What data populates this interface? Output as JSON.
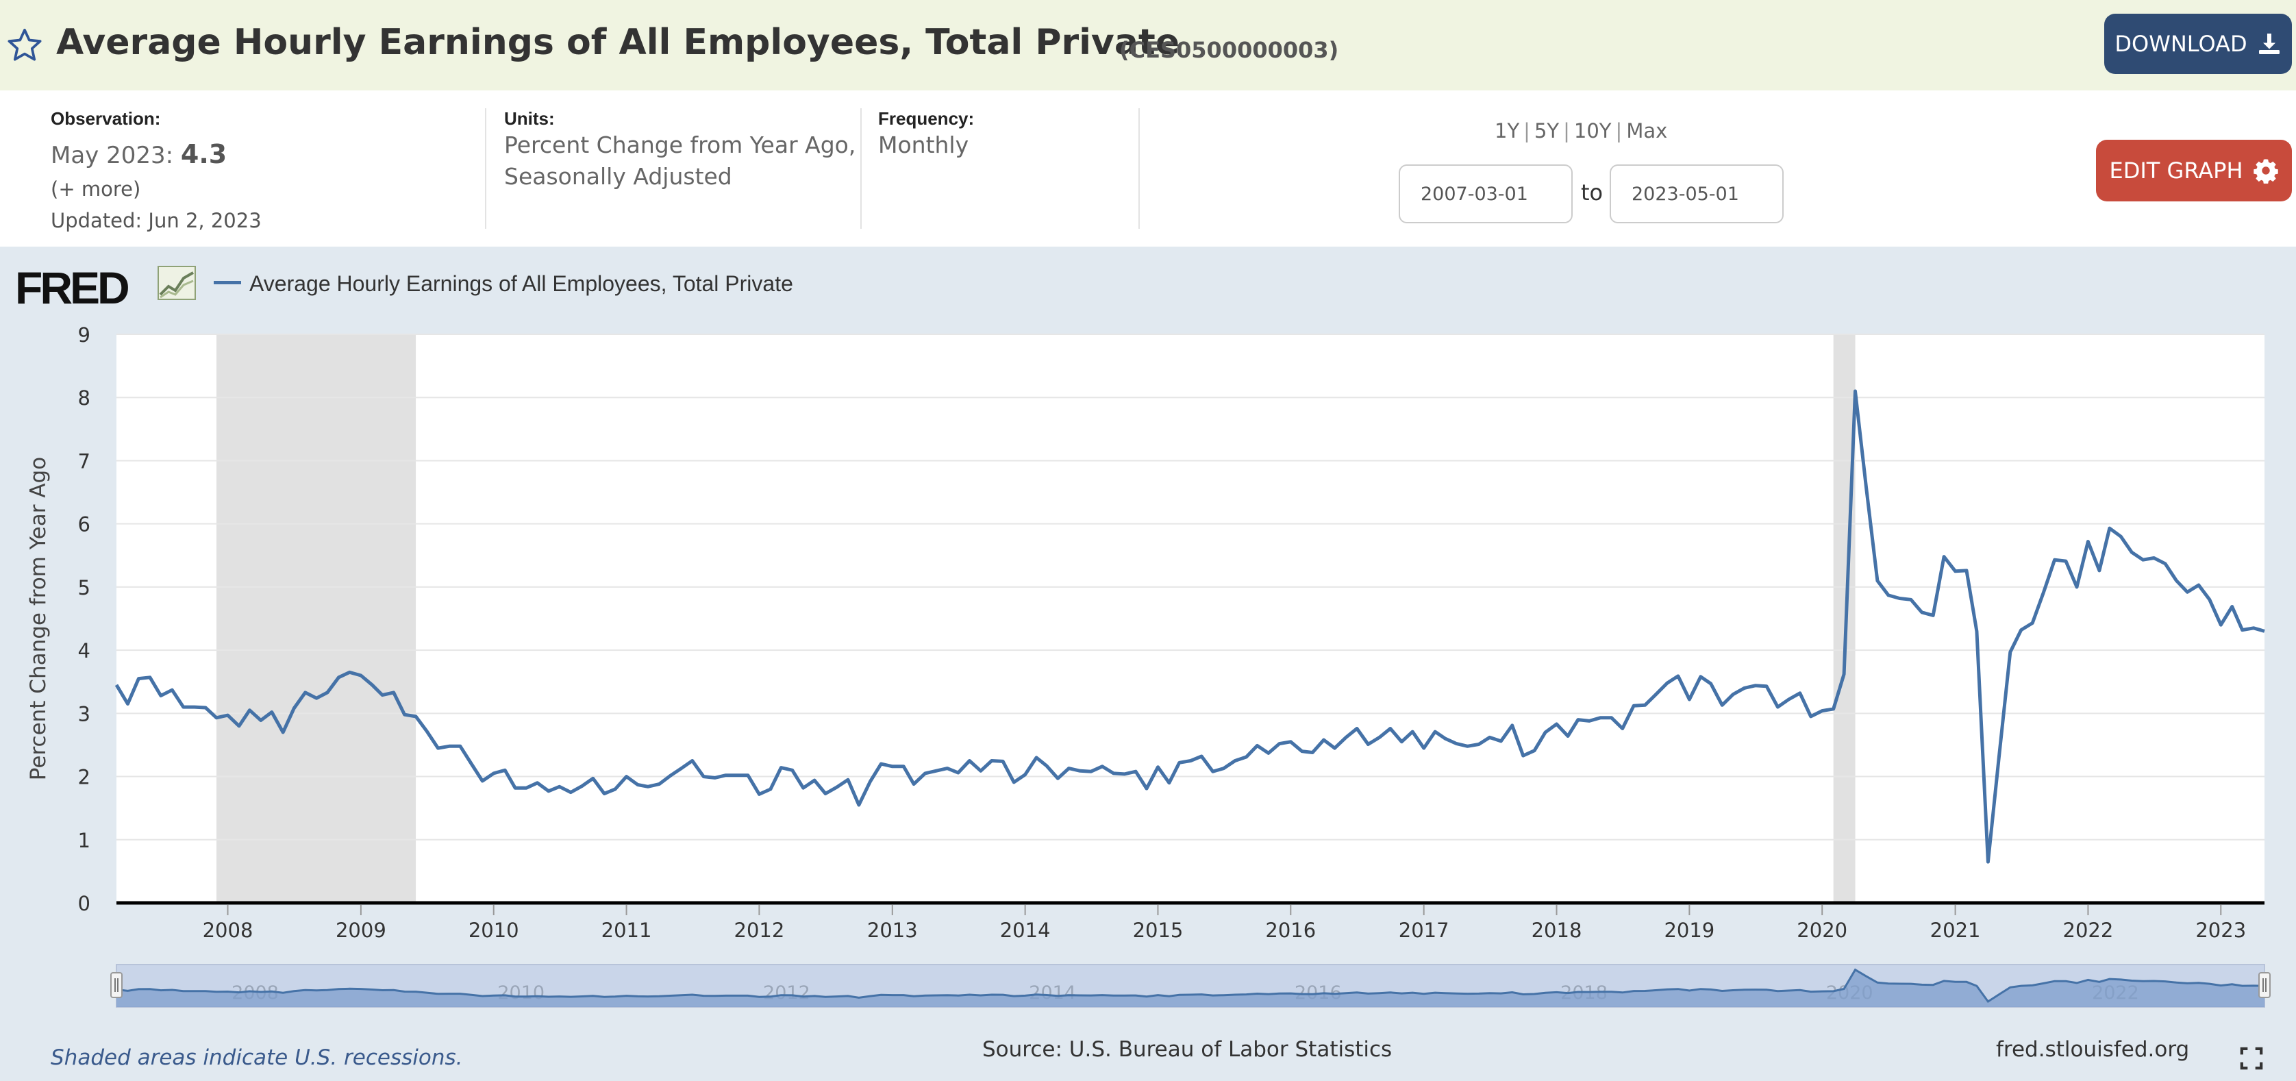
{
  "header": {
    "title": "Average Hourly Earnings of All Employees, Total Private",
    "series_id": "(CES0500000003)",
    "download_label": "DOWNLOAD",
    "bg_color": "#f0f4e1",
    "download_color": "#2f4b73"
  },
  "meta": {
    "observation_label": "Observation:",
    "observation_date": "May 2023:",
    "observation_value": "4.3",
    "more_label": "(+ more)",
    "updated": "Updated: Jun 2, 2023",
    "units_label": "Units:",
    "units_line1": "Percent Change from Year Ago,",
    "units_line2": "Seasonally Adjusted",
    "frequency_label": "Frequency:",
    "frequency_value": "Monthly",
    "ranges": [
      "1Y",
      "5Y",
      "10Y",
      "Max"
    ],
    "start_date": "2007-03-01",
    "to_label": "to",
    "end_date": "2023-05-01",
    "edit_label": "EDIT GRAPH",
    "edit_color": "#c84b3c"
  },
  "chart": {
    "logo_text": "FRED",
    "legend_label": "Average Hourly Earnings of All Employees, Total Private",
    "footer_note": "Shaded areas indicate U.S. recessions.",
    "source": "Source: U.S. Bureau of Labor Statistics",
    "site": "fred.stlouisfed.org"
  },
  "chart_data": {
    "type": "line",
    "title": "",
    "xlabel": "",
    "ylabel": "Percent Change from Year Ago",
    "ylim": [
      0,
      9
    ],
    "yticks": [
      0,
      1,
      2,
      3,
      4,
      5,
      6,
      7,
      8,
      9
    ],
    "xlim": [
      "2007-03-01",
      "2023-05-01"
    ],
    "xticks": [
      "2008",
      "2009",
      "2010",
      "2011",
      "2012",
      "2013",
      "2014",
      "2015",
      "2016",
      "2017",
      "2018",
      "2019",
      "2020",
      "2021",
      "2022",
      "2023"
    ],
    "navigator_labels": [
      "2008",
      "2010",
      "2012",
      "2014",
      "2016",
      "2018",
      "2020",
      "2022"
    ],
    "grid": true,
    "recessions": [
      [
        "2007-12-01",
        "2009-06-01"
      ],
      [
        "2020-02-01",
        "2020-04-01"
      ]
    ],
    "line_color": "#4572a7",
    "recession_color": "#e1e1e1",
    "series": [
      {
        "name": "Average Hourly Earnings of All Employees, Total Private",
        "start": "2007-03",
        "frequency": "monthly",
        "values": [
          3.45,
          3.15,
          3.55,
          3.57,
          3.28,
          3.37,
          3.1,
          3.1,
          3.09,
          2.93,
          2.97,
          2.8,
          3.05,
          2.89,
          3.02,
          2.7,
          3.08,
          3.33,
          3.24,
          3.33,
          3.57,
          3.65,
          3.6,
          3.45,
          3.29,
          3.33,
          2.98,
          2.95,
          2.72,
          2.45,
          2.48,
          2.48,
          2.2,
          1.93,
          2.05,
          2.1,
          1.82,
          1.82,
          1.9,
          1.77,
          1.84,
          1.75,
          1.85,
          1.97,
          1.73,
          1.8,
          2.0,
          1.87,
          1.84,
          1.88,
          2.01,
          2.13,
          2.25,
          2.0,
          1.98,
          2.02,
          2.02,
          2.02,
          1.72,
          1.8,
          2.14,
          2.1,
          1.82,
          1.94,
          1.73,
          1.83,
          1.95,
          1.55,
          1.92,
          2.2,
          2.16,
          2.16,
          1.88,
          2.05,
          2.09,
          2.13,
          2.06,
          2.25,
          2.09,
          2.25,
          2.24,
          1.91,
          2.03,
          2.3,
          2.17,
          1.97,
          2.13,
          2.09,
          2.08,
          2.16,
          2.05,
          2.04,
          2.08,
          1.81,
          2.15,
          1.9,
          2.22,
          2.25,
          2.32,
          2.08,
          2.13,
          2.25,
          2.31,
          2.49,
          2.37,
          2.52,
          2.55,
          2.4,
          2.38,
          2.58,
          2.45,
          2.62,
          2.76,
          2.51,
          2.62,
          2.76,
          2.55,
          2.71,
          2.45,
          2.71,
          2.6,
          2.52,
          2.48,
          2.51,
          2.62,
          2.56,
          2.81,
          2.33,
          2.41,
          2.7,
          2.83,
          2.64,
          2.9,
          2.88,
          2.93,
          2.93,
          2.76,
          3.12,
          3.13,
          3.3,
          3.48,
          3.59,
          3.22,
          3.58,
          3.47,
          3.13,
          3.3,
          3.4,
          3.44,
          3.43,
          3.1,
          3.22,
          3.32,
          2.95,
          3.04,
          3.07,
          3.62,
          8.1,
          6.58,
          5.1,
          4.87,
          4.82,
          4.8,
          4.6,
          4.55,
          5.48,
          5.25,
          5.26,
          4.3,
          0.65,
          2.3,
          3.97,
          4.32,
          4.43,
          4.92,
          5.43,
          5.41,
          5.0,
          5.72,
          5.26,
          5.93,
          5.8,
          5.55,
          5.43,
          5.46,
          5.37,
          5.1,
          4.92,
          5.03,
          4.8,
          4.4,
          4.69,
          4.32,
          4.35,
          4.3
        ]
      }
    ]
  }
}
